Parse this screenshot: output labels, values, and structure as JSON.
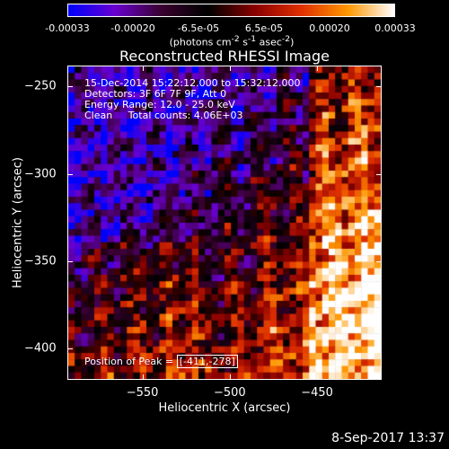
{
  "colorbar": {
    "ticks": [
      "-0.00033",
      "-0.00020",
      "-6.5e-05",
      "6.5e-05",
      "0.00020",
      "0.00033"
    ],
    "unit_html": "(photons cm<sup>-2</sup> s<sup>-1</sup> asec<sup>-2</sup>)"
  },
  "chart_data": {
    "type": "heatmap",
    "title": "Reconstructed RHESSI Image",
    "xlabel": "Heliocentric X (arcsec)",
    "ylabel": "Heliocentric Y (arcsec)",
    "xlim": [
      -593,
      -413
    ],
    "ylim": [
      -418,
      -238
    ],
    "xticks": [
      -550,
      -500,
      -450
    ],
    "yticks": [
      -250,
      -300,
      -350,
      -400
    ],
    "value_range": [
      -0.00033,
      0.00033
    ],
    "grid": false,
    "colormap": [
      "#0000ff",
      "#6a00d0",
      "#3a0030",
      "#000000",
      "#8a0000",
      "#e03000",
      "#ff9800",
      "#ffffff"
    ],
    "peak_position": [
      -411,
      -278
    ]
  },
  "annotations": {
    "line1": "15-Dec-2014 15:22:12.000 to 15:32:12.000",
    "line2": "Detectors: 3F 6F 7F 9F, Att 0",
    "line3": "Energy Range: 12.0 - 25.0 keV",
    "line4": "Clean     Total counts: 4.06E+03",
    "peak_label": "Position of Peak = ",
    "peak_value": "[-411,-278]"
  },
  "footer": {
    "timestamp": "8-Sep-2017 13:37"
  }
}
